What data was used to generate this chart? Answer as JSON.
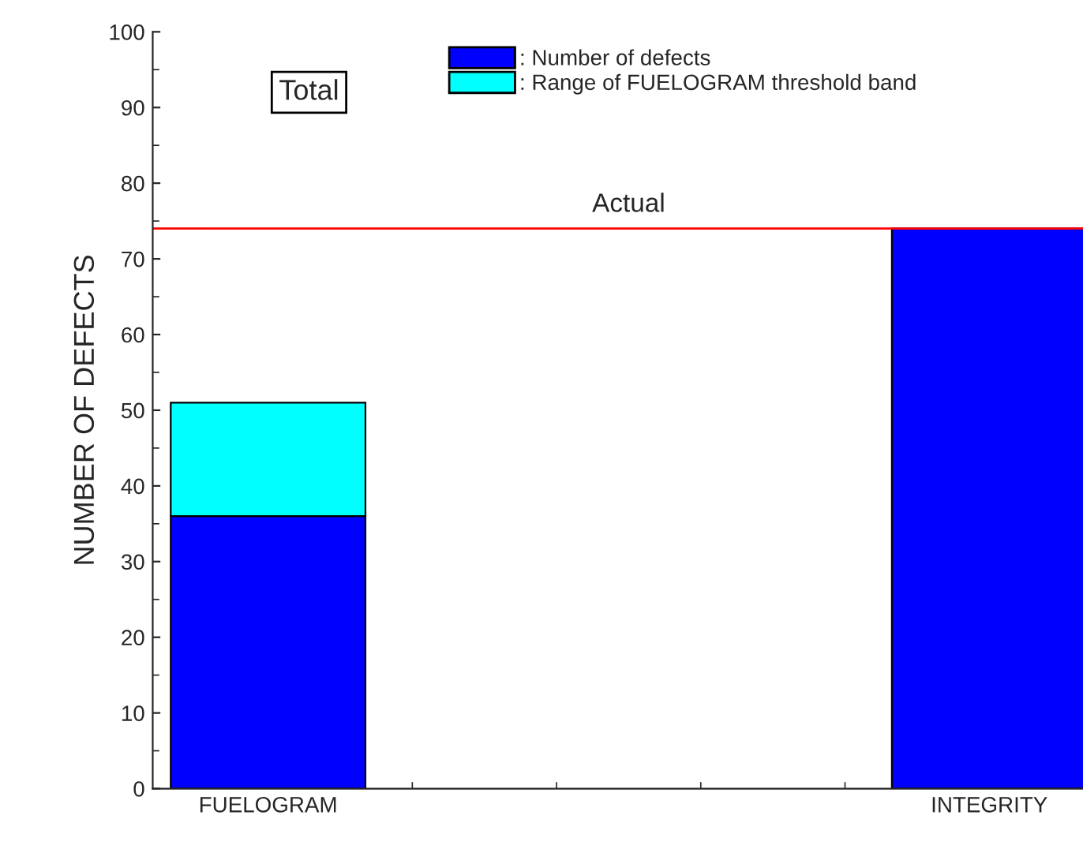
{
  "chart_data": {
    "type": "bar",
    "stacked": true,
    "ylabel": "NUMBER OF DEFECTS",
    "categories": [
      "FUELOGRAM",
      "INTEGRITY"
    ],
    "series": [
      {
        "name": ": Number of defects",
        "color": "#0000ff",
        "values": [
          36,
          74
        ]
      },
      {
        "name": ": Range of FUELOGRAM threshold band",
        "color": "#00ffff",
        "values": [
          15,
          null
        ]
      }
    ],
    "ylim": [
      0,
      100
    ],
    "yticks": [
      0,
      10,
      20,
      30,
      40,
      50,
      60,
      70,
      80,
      90,
      100
    ],
    "ref_lines": [
      {
        "axis": "y",
        "value": 74,
        "label": "Actual",
        "color": "#ff0000"
      }
    ],
    "annotations": [
      "Total"
    ],
    "legend": "top",
    "grid": false
  }
}
